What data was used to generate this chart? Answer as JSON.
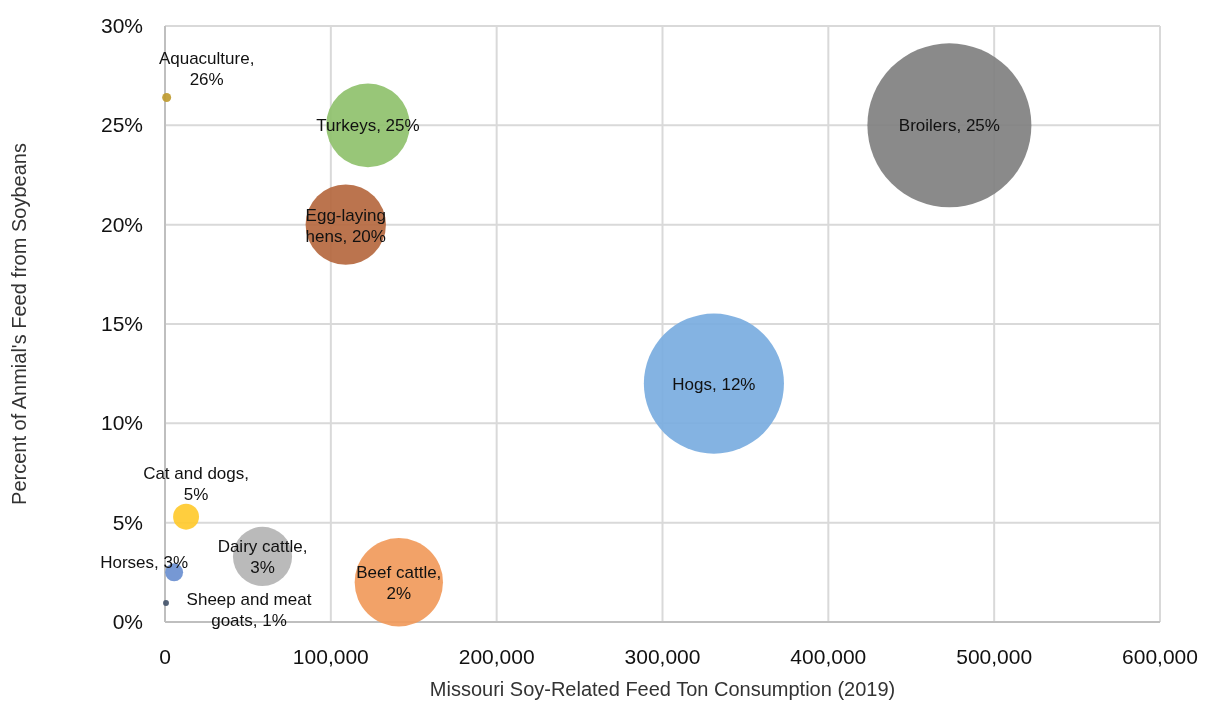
{
  "chart_data": {
    "type": "bubble",
    "xlabel": "Missouri Soy-Related Feed Ton Consumption (2019)",
    "ylabel": "Percent of Anmial's Feed  from Soybeans",
    "xlim": [
      0,
      600000
    ],
    "xticks": [
      {
        "value": 0,
        "label": "0"
      },
      {
        "value": 100000,
        "label": "100,000"
      },
      {
        "value": 200000,
        "label": "200,000"
      },
      {
        "value": 300000,
        "label": "300,000"
      },
      {
        "value": 400000,
        "label": "400,000"
      },
      {
        "value": 500000,
        "label": "500,000"
      },
      {
        "value": 600000,
        "label": "600,000"
      }
    ],
    "ylim": [
      0,
      30
    ],
    "yticks": [
      {
        "value": 0,
        "label": "0%"
      },
      {
        "value": 5,
        "label": "5%"
      },
      {
        "value": 10,
        "label": "10%"
      },
      {
        "value": 15,
        "label": "15%"
      },
      {
        "value": 20,
        "label": "20%"
      },
      {
        "value": 25,
        "label": "25%"
      },
      {
        "value": 30,
        "label": "30%"
      }
    ],
    "grid": true,
    "series": [
      {
        "color": "#bf9b30",
        "x": [
          1000
        ],
        "values": [
          26.4
        ],
        "sizes": [
          0.003
        ],
        "value_labels": [
          "Aquaculture, 26%"
        ]
      },
      {
        "color": "#8fc16d",
        "x": [
          122400
        ],
        "values": [
          25
        ],
        "sizes": [
          0.26
        ],
        "value_labels": [
          "Turkeys, 25%"
        ]
      },
      {
        "color": "#b5683f",
        "x": [
          109000
        ],
        "values": [
          20
        ],
        "sizes": [
          0.24
        ],
        "value_labels": [
          "Egg-laying hens, 20%"
        ]
      },
      {
        "color": "#808080",
        "x": [
          473000
        ],
        "values": [
          25
        ],
        "sizes": [
          1
        ],
        "value_labels": [
          "Broilers, 25%"
        ]
      },
      {
        "color": "#7aaddf",
        "x": [
          331000
        ],
        "values": [
          12
        ],
        "sizes": [
          0.73
        ],
        "value_labels": [
          "Hogs, 12%"
        ]
      },
      {
        "color": "#ffca2e",
        "x": [
          12700
        ],
        "values": [
          5.3
        ],
        "sizes": [
          0.025
        ],
        "value_labels": [
          "Cat and dogs, 5%"
        ]
      },
      {
        "color": "#6a8fd0",
        "x": [
          5500
        ],
        "values": [
          2.5
        ],
        "sizes": [
          0.012
        ],
        "value_labels": [
          "Horses, 3%"
        ]
      },
      {
        "color": "#44546a",
        "x": [
          600
        ],
        "values": [
          0.96
        ],
        "sizes": [
          0.0013
        ],
        "value_labels": [
          "Sheep and meat goats, 1%"
        ]
      },
      {
        "color": "#b4b4b4",
        "x": [
          58800
        ],
        "values": [
          3.3
        ],
        "sizes": [
          0.13
        ],
        "value_labels": [
          "Dairy cattle, 3%"
        ]
      },
      {
        "color": "#f19a5b",
        "x": [
          141000
        ],
        "values": [
          2
        ],
        "sizes": [
          0.29
        ],
        "value_labels": [
          "Beef cattle, 2%"
        ]
      }
    ]
  }
}
